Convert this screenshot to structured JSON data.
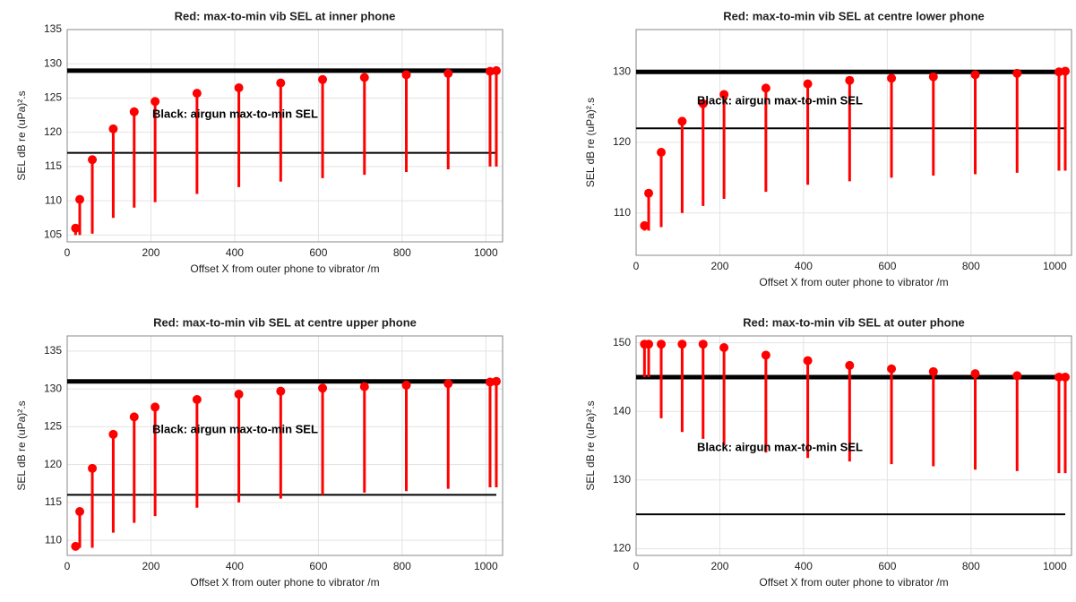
{
  "chart_data": [
    {
      "type": "range-stem",
      "title": "Red: max-to-min vib SEL at inner  phone",
      "x_label": "Offset X from outer phone to vibrator /m",
      "y_label": "SEL dB re (uPa)².s",
      "annotation": "Black: airgun max-to-min SEL",
      "x": [
        20,
        30,
        60,
        110,
        160,
        210,
        310,
        410,
        510,
        610,
        710,
        810,
        910,
        1010,
        1025
      ],
      "max": [
        106,
        110.2,
        116,
        120.5,
        123,
        124.5,
        125.7,
        126.5,
        127.2,
        127.7,
        128,
        128.4,
        128.6,
        128.9,
        129
      ],
      "min": [
        105,
        105,
        105.2,
        107.5,
        109,
        109.8,
        111,
        112,
        112.8,
        113.3,
        113.8,
        114.2,
        114.6,
        115,
        115
      ],
      "color": "#ff0000",
      "reference_lines": [
        129,
        117
      ],
      "reference_color": "#000000",
      "xlim": [
        0,
        1040
      ],
      "xticks": [
        0,
        200,
        400,
        600,
        800,
        1000
      ],
      "ylim": [
        104,
        135
      ],
      "yticks": [
        105,
        110,
        115,
        120,
        125,
        130,
        135
      ],
      "grid": true
    },
    {
      "type": "range-stem",
      "title": "Red: max-to-min vib SEL at centre lower phone",
      "x_label": "Offset X from outer phone to vibrator /m",
      "y_label": "SEL dB re (uPa)².s",
      "annotation": "Black: airgun max-to-min SEL",
      "x": [
        20,
        30,
        60,
        110,
        160,
        210,
        310,
        410,
        510,
        610,
        710,
        810,
        910,
        1010,
        1025
      ],
      "max": [
        108.2,
        112.8,
        118.6,
        123,
        125.5,
        126.8,
        127.7,
        128.3,
        128.8,
        129.1,
        129.3,
        129.6,
        129.8,
        130,
        130.1
      ],
      "min": [
        107.5,
        107.5,
        108,
        110,
        111,
        112,
        113,
        114,
        114.5,
        115,
        115.3,
        115.5,
        115.7,
        116,
        116
      ],
      "color": "#ff0000",
      "reference_lines": [
        130,
        122
      ],
      "reference_color": "#000000",
      "xlim": [
        0,
        1040
      ],
      "xticks": [
        0,
        200,
        400,
        600,
        800,
        1000
      ],
      "ylim": [
        104,
        136
      ],
      "yticks": [
        110,
        120,
        130
      ],
      "grid": true
    },
    {
      "type": "range-stem",
      "title": "Red: max-to-min vib SEL at centre upper phone",
      "x_label": "Offset X from outer phone to vibrator /m",
      "y_label": "SEL dB re (uPa)².s",
      "annotation": "Black: airgun max-to-min SEL",
      "x": [
        20,
        30,
        60,
        110,
        160,
        210,
        310,
        410,
        510,
        610,
        710,
        810,
        910,
        1010,
        1025
      ],
      "max": [
        109.2,
        113.8,
        119.5,
        124,
        126.3,
        127.6,
        128.6,
        129.3,
        129.7,
        130.1,
        130.3,
        130.5,
        130.7,
        130.9,
        131
      ],
      "min": [
        109,
        109,
        109,
        111,
        112.3,
        113.2,
        114.3,
        115,
        115.5,
        116,
        116.3,
        116.5,
        116.8,
        117,
        117
      ],
      "color": "#ff0000",
      "reference_lines": [
        131,
        116
      ],
      "reference_color": "#000000",
      "xlim": [
        0,
        1040
      ],
      "xticks": [
        0,
        200,
        400,
        600,
        800,
        1000
      ],
      "ylim": [
        108,
        137
      ],
      "yticks": [
        110,
        115,
        120,
        125,
        130,
        135
      ],
      "grid": true
    },
    {
      "type": "range-stem",
      "title": "Red: max-to-min vib SEL at outer  phone",
      "x_label": "Offset X from outer phone to vibrator /m",
      "y_label": "SEL dB re (uPa)².s",
      "annotation": "Black: airgun max-to-min SEL",
      "x": [
        20,
        30,
        60,
        110,
        160,
        210,
        310,
        410,
        510,
        610,
        710,
        810,
        910,
        1010,
        1025
      ],
      "max": [
        149.8,
        149.8,
        149.8,
        149.8,
        149.8,
        149.3,
        148.2,
        147.4,
        146.7,
        146.2,
        145.8,
        145.5,
        145.2,
        145,
        145
      ],
      "min": [
        145,
        145,
        139,
        137,
        136,
        135,
        134,
        133.2,
        132.7,
        132.3,
        132,
        131.5,
        131.3,
        131,
        131
      ],
      "color": "#ff0000",
      "reference_lines": [
        145,
        125
      ],
      "reference_color": "#000000",
      "xlim": [
        0,
        1040
      ],
      "xticks": [
        0,
        200,
        400,
        600,
        800,
        1000
      ],
      "ylim": [
        119,
        151
      ],
      "yticks": [
        120,
        130,
        140,
        150
      ],
      "grid": true
    }
  ]
}
